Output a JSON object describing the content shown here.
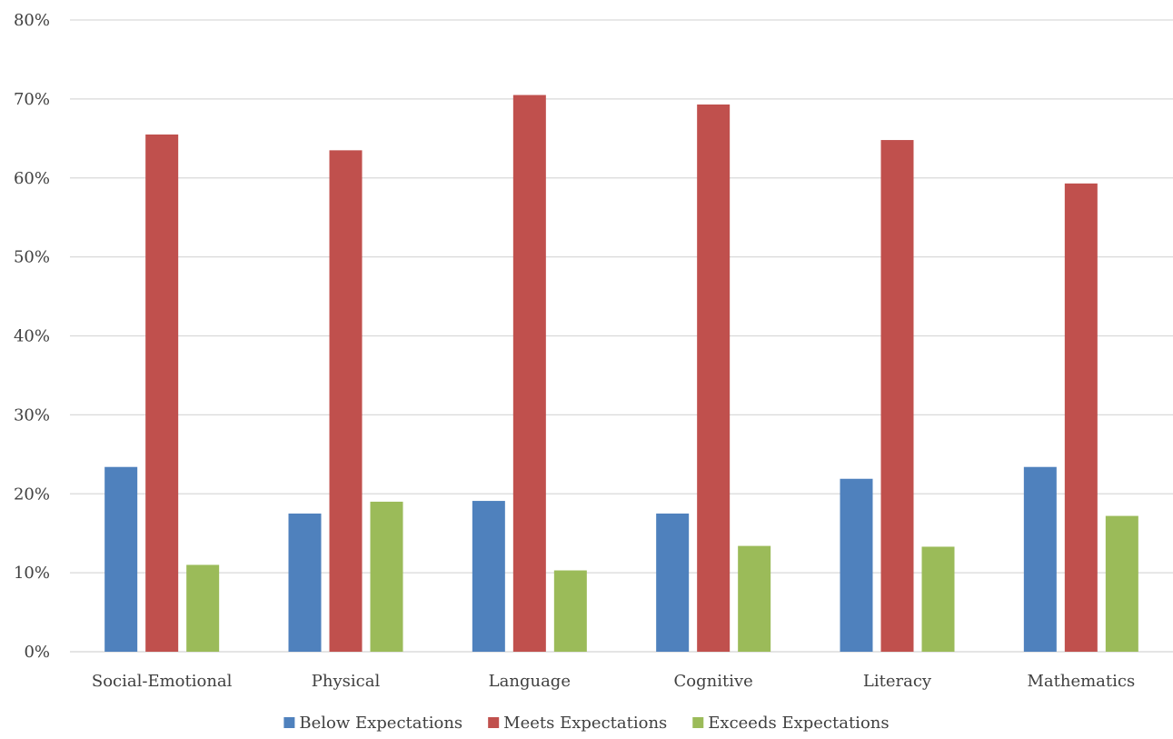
{
  "chart_data": {
    "type": "bar",
    "title": "",
    "xlabel": "",
    "ylabel": "",
    "categories": [
      "Social-Emotional",
      "Physical",
      "Language",
      "Cognitive",
      "Literacy",
      "Mathematics"
    ],
    "series": [
      {
        "name": "Below Expectations",
        "color": "#4F81BD",
        "values": [
          23.4,
          17.5,
          19.1,
          17.5,
          21.9,
          23.4
        ]
      },
      {
        "name": "Meets Expectations",
        "color": "#C0504D",
        "values": [
          65.5,
          63.5,
          70.5,
          69.3,
          64.8,
          59.3
        ]
      },
      {
        "name": "Exceeds Expectations",
        "color": "#9BBB59",
        "values": [
          11.0,
          19.0,
          10.3,
          13.4,
          13.3,
          17.2
        ]
      }
    ],
    "ylim": [
      0,
      80
    ],
    "yticks": [
      "0%",
      "10%",
      "20%",
      "30%",
      "40%",
      "50%",
      "60%",
      "70%",
      "80%"
    ],
    "grid": true,
    "legend_position": "bottom"
  }
}
